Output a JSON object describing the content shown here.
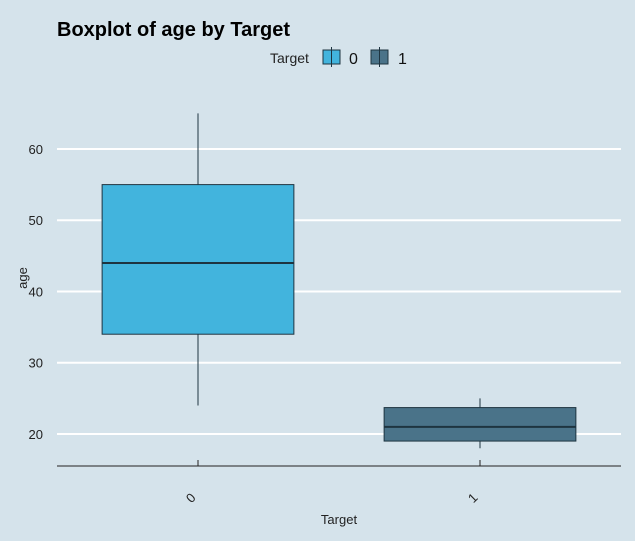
{
  "chart_data": {
    "type": "boxplot",
    "title": "Boxplot of age by Target",
    "xlabel": "Target",
    "ylabel": "age",
    "categories": [
      "0",
      "1"
    ],
    "legend": {
      "title": "Target",
      "position": "top",
      "entries": [
        {
          "label": "0",
          "color": "#42b4dd"
        },
        {
          "label": "1",
          "color": "#4a7389"
        }
      ]
    },
    "ylim": [
      15.5,
      68
    ],
    "yticks": [
      20,
      30,
      40,
      50,
      60
    ],
    "grid": "horizontal",
    "boxes": [
      {
        "category": "0",
        "min": 24,
        "q1": 34,
        "median": 44,
        "q3": 55,
        "max": 65,
        "color": "#42b4dd"
      },
      {
        "category": "1",
        "min": 18,
        "q1": 19,
        "median": 21,
        "q3": 23.7,
        "max": 25,
        "color": "#4a7389"
      }
    ]
  }
}
